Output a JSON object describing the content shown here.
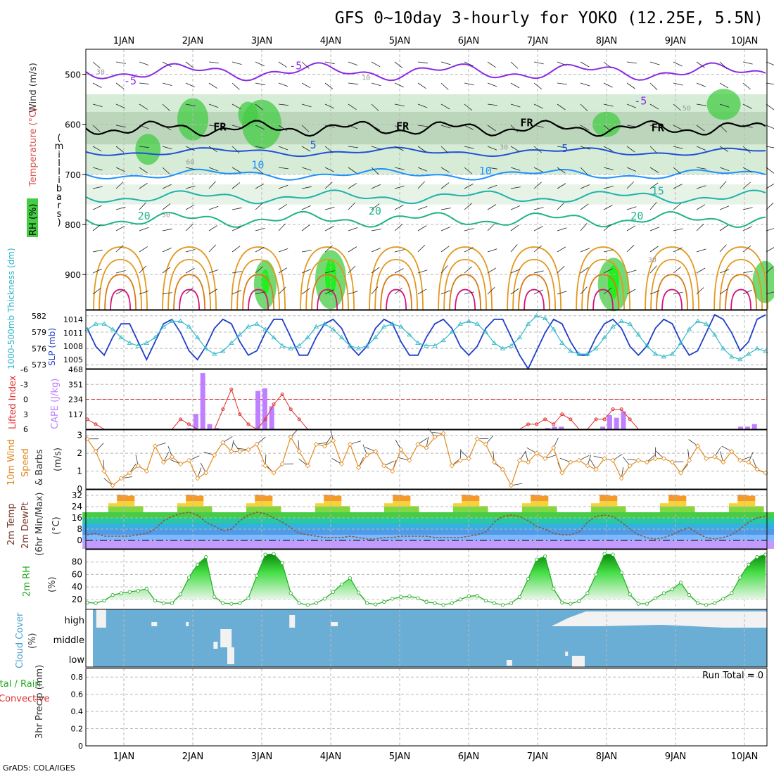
{
  "title": "GFS 0~10day 3-hourly for YOKO (12.25E, 5.5N)",
  "footer": "GrADS: COLA/IGES",
  "colors": {
    "frame": "#000000",
    "grid": "#b8b8b8",
    "rh_green": "#44cc44",
    "rh_light": "#d6ecd6",
    "purple": "#8a2be2",
    "blue": "#1f4fd8",
    "cyan": "#2bb5c8",
    "teal": "#20b2aa",
    "orange": "#e3981e",
    "magenta": "#d6147a",
    "slp": "#1f3fc8",
    "thickness": "#30b8c8",
    "cape": "#bf7fff",
    "lifted": "#e03030",
    "wind": "#e08a1e",
    "temp_line": "#7a3b2e",
    "dew": "#8b5a3a",
    "rh2m": "#22aa22",
    "cloud_bg": "#6aaed6",
    "cloud_fill": "#f2f2f2"
  },
  "chart_data": [
    {
      "panel": "upper-air",
      "type": "contour",
      "x": [
        "1JAN",
        "2JAN",
        "3JAN",
        "4JAN",
        "5JAN",
        "6JAN",
        "7JAN",
        "8JAN",
        "9JAN",
        "10JAN"
      ],
      "ylabel_parts": [
        "Wind (m/s)",
        "Temperature (°C)",
        "RH (%)",
        "(millibars)"
      ],
      "ylabel_chars": [
        "(",
        "m",
        "i",
        "l",
        "l",
        "i",
        "b",
        "a",
        "r",
        "s",
        ")"
      ],
      "yticks": [
        500,
        600,
        700,
        800,
        900
      ],
      "ylim": [
        450,
        970
      ],
      "contour_labels": [
        {
          "text": "-5",
          "day": 0.0,
          "p": 520
        },
        {
          "text": "-5",
          "day": 2.4,
          "p": 490
        },
        {
          "text": "-5",
          "day": 7.4,
          "p": 560
        },
        {
          "text": "FR",
          "day": 1.3,
          "p": 612
        },
        {
          "text": "FR",
          "day": 3.95,
          "p": 611
        },
        {
          "text": "FR",
          "day": 5.75,
          "p": 604
        },
        {
          "text": "FR",
          "day": 7.65,
          "p": 614
        },
        {
          "text": "5",
          "day": 2.7,
          "p": 648
        },
        {
          "text": "5",
          "day": 6.35,
          "p": 655
        },
        {
          "text": "10",
          "day": 1.85,
          "p": 688
        },
        {
          "text": "10",
          "day": 5.15,
          "p": 700
        },
        {
          "text": "15",
          "day": 7.65,
          "p": 740
        },
        {
          "text": "20",
          "day": 0.2,
          "p": 790
        },
        {
          "text": "20",
          "day": 3.55,
          "p": 780
        },
        {
          "text": "20",
          "day": 7.35,
          "p": 790
        },
        {
          "text": "30",
          "day": -0.4,
          "p": 500
        },
        {
          "text": "10",
          "day": 3.45,
          "p": 512
        },
        {
          "text": "50",
          "day": 8.1,
          "p": 572
        },
        {
          "text": "30",
          "day": 5.45,
          "p": 650
        },
        {
          "text": "30",
          "day": 0.55,
          "p": 785
        },
        {
          "text": "30",
          "day": 7.6,
          "p": 875
        },
        {
          "text": "60",
          "day": 0.9,
          "p": 680
        }
      ],
      "contour_levels": {
        "temperature_upper": [
          -5
        ],
        "freezing": [
          "FR"
        ],
        "temperature_mid": [
          5,
          10,
          15,
          20
        ],
        "rh_percent": [
          10,
          30,
          50,
          60
        ]
      }
    },
    {
      "panel": "slp-thickness",
      "type": "line",
      "ylabel_left": "1000-500mb Thickness (dm)",
      "ylabel_right": "SLP (mb)",
      "yticks_left": [
        573,
        576,
        579,
        582
      ],
      "yticks_right": [
        1005,
        1008,
        1011,
        1014
      ],
      "series": [
        {
          "name": "SLP",
          "axis": "right",
          "values": [
            1012,
            1008,
            1006,
            1010,
            1013,
            1013,
            1009,
            1005,
            1009,
            1013,
            1014,
            1011,
            1007,
            1005,
            1008,
            1012,
            1014,
            1013,
            1009,
            1006,
            1007,
            1011,
            1014,
            1014,
            1010,
            1006,
            1006,
            1010,
            1013,
            1014,
            1012,
            1008,
            1006,
            1008,
            1012,
            1014,
            1013,
            1009,
            1006,
            1006,
            1010,
            1013,
            1014,
            1012,
            1008,
            1006,
            1008,
            1012,
            1014,
            1014,
            1010,
            1006,
            1003,
            1007,
            1011,
            1014,
            1013,
            1009,
            1006,
            1006,
            1010,
            1013,
            1014,
            1012,
            1008,
            1006,
            1008,
            1012,
            1014,
            1013,
            1009,
            1006,
            1007,
            1011,
            1015,
            1014,
            1011,
            1007,
            1009,
            1014,
            1015
          ]
        },
        {
          "name": "Thickness",
          "axis": "left",
          "values": [
            579.5,
            580.5,
            580.5,
            579.5,
            578,
            577,
            576.5,
            577,
            578,
            580,
            581,
            581,
            580,
            578,
            576,
            575,
            575.5,
            577,
            578.5,
            580,
            580.5,
            579.5,
            578,
            576.5,
            576,
            576.5,
            578,
            580,
            580.5,
            579.5,
            578,
            576.5,
            576,
            576.5,
            578,
            580,
            580.5,
            580,
            578.5,
            577,
            576.5,
            576.5,
            577.5,
            579,
            580.5,
            581,
            580.5,
            579,
            577,
            576,
            576.5,
            578,
            580.5,
            582,
            581.5,
            579.5,
            577,
            575.5,
            575,
            575,
            576,
            578,
            580,
            581,
            580.5,
            578.5,
            576.5,
            575,
            574.5,
            575,
            577,
            579.5,
            581,
            580.5,
            578.5,
            576,
            574.5,
            574,
            575,
            576,
            575.5
          ]
        }
      ]
    },
    {
      "panel": "lifted-cape",
      "type": "bar",
      "ylabel_left": "Lifted Index",
      "ylabel_right": "CAPE (J/kg)",
      "yticks_left": [
        6,
        3,
        0,
        -3,
        -6
      ],
      "yticks_right": [
        117,
        234,
        351,
        468
      ],
      "cape_bars": [
        {
          "day": 1.95,
          "value": 10
        },
        {
          "day": 2.05,
          "value": 120
        },
        {
          "day": 2.15,
          "value": 440
        },
        {
          "day": 2.25,
          "value": 40
        },
        {
          "day": 2.35,
          "value": 10
        },
        {
          "day": 2.95,
          "value": 300
        },
        {
          "day": 3.05,
          "value": 320
        },
        {
          "day": 3.15,
          "value": 180
        },
        {
          "day": 7.15,
          "value": 10
        },
        {
          "day": 7.25,
          "value": 20
        },
        {
          "day": 7.35,
          "value": 20
        },
        {
          "day": 7.95,
          "value": 20
        },
        {
          "day": 8.05,
          "value": 110
        },
        {
          "day": 8.15,
          "value": 90
        },
        {
          "day": 8.25,
          "value": 140
        },
        {
          "day": 9.95,
          "value": 20
        },
        {
          "day": 10.05,
          "value": 20
        },
        {
          "day": 10.15,
          "value": 40
        }
      ],
      "lifted_index": [
        4,
        5,
        6,
        6,
        6,
        6,
        6,
        6,
        6,
        6,
        6,
        4,
        5,
        6,
        6,
        6,
        2,
        -2,
        3,
        5,
        6,
        4,
        1,
        -1,
        2,
        4,
        6,
        6,
        6,
        6,
        6,
        6,
        6,
        6,
        6,
        6,
        6,
        6,
        6,
        6,
        6,
        6,
        6,
        6,
        6,
        6,
        6,
        6,
        6,
        6,
        6,
        6,
        5,
        5,
        4,
        5,
        3,
        4,
        6,
        6,
        4,
        4,
        2,
        2,
        4,
        6,
        6,
        6,
        6,
        6,
        6,
        6,
        6,
        6,
        6,
        6,
        6,
        6,
        6,
        6,
        6
      ]
    },
    {
      "panel": "wind10m",
      "type": "line",
      "ylabel": "10m Wind Speed & Barbs (m/s)",
      "ylabel_parts": [
        "10m Wind",
        "Speed",
        "& Barbs",
        "(m/s)"
      ],
      "yticks": [
        0,
        1,
        2,
        3
      ],
      "values": [
        2.8,
        2.1,
        1.0,
        0.2,
        0.6,
        0.9,
        1.3,
        1.0,
        2.4,
        1.5,
        1.8,
        1.4,
        1.6,
        0.6,
        0.9,
        1.9,
        2.6,
        2.1,
        2.1,
        2.2,
        2.5,
        1.3,
        0.9,
        1.4,
        2.9,
        2.1,
        1.3,
        2.5,
        2.4,
        2.7,
        1.4,
        2.5,
        1.2,
        1.9,
        2.1,
        1.3,
        1.0,
        2.2,
        1.6,
        2.5,
        2.3,
        2.9,
        3.1,
        1.3,
        1.6,
        1.7,
        2.8,
        2.5,
        1.5,
        1.1,
        0.2,
        1.6,
        1.5,
        2.0,
        1.7,
        2.3,
        0.9,
        1.5,
        1.6,
        1.3,
        1.1,
        1.7,
        1.6,
        0.6,
        1.3,
        1.6,
        1.5,
        1.7,
        1.7,
        1.5,
        0.9,
        1.6,
        2.4,
        1.7,
        1.8,
        1.5,
        2.1,
        1.6,
        1.5,
        1.1,
        0.9
      ]
    },
    {
      "panel": "temperature",
      "type": "area",
      "ylabel_parts": [
        "2m Temp",
        "2m DewPt",
        "(6hr Min/Max)",
        "(°C)"
      ],
      "yticks": [
        0,
        8,
        16,
        24,
        32
      ],
      "temp_daily": [
        {
          "min": 20,
          "max": 33
        }
      ],
      "dewpoint": [
        4,
        5,
        3,
        3,
        3,
        3,
        4,
        5,
        8,
        14,
        17,
        19,
        20,
        18,
        13,
        10,
        7,
        8,
        14,
        18,
        20,
        19,
        16,
        13,
        9,
        5,
        4,
        3,
        2,
        2,
        2,
        3,
        2,
        1,
        1,
        2,
        2,
        3,
        3,
        3,
        3,
        2,
        2,
        2,
        2,
        3,
        4,
        6,
        13,
        17,
        18,
        17,
        14,
        10,
        8,
        5,
        4,
        4,
        6,
        13,
        17,
        18,
        17,
        13,
        8,
        4,
        2,
        1,
        2,
        4,
        7,
        9,
        5,
        2,
        1,
        2,
        4,
        8,
        13,
        16,
        17
      ]
    },
    {
      "panel": "rh2m",
      "type": "area",
      "ylabel": "2m RH",
      "unit": "(%)",
      "yticks": [
        20,
        40,
        60,
        80
      ],
      "values": [
        15,
        14,
        18,
        27,
        30,
        32,
        34,
        37,
        18,
        14,
        14,
        28,
        55,
        76,
        88,
        24,
        14,
        13,
        14,
        22,
        58,
        92,
        93,
        78,
        30,
        14,
        11,
        14,
        21,
        32,
        44,
        54,
        31,
        14,
        12,
        16,
        21,
        24,
        25,
        22,
        16,
        14,
        11,
        14,
        20,
        25,
        26,
        18,
        14,
        11,
        14,
        24,
        53,
        84,
        89,
        37,
        15,
        13,
        17,
        30,
        60,
        93,
        92,
        63,
        28,
        13,
        13,
        22,
        30,
        36,
        47,
        27,
        14,
        11,
        14,
        21,
        30,
        55,
        76,
        88,
        92
      ]
    },
    {
      "panel": "cloud",
      "type": "heatmap",
      "ylabel": "Cloud Cover",
      "unit": "(%)",
      "levels": [
        "high",
        "middle",
        "low"
      ]
    },
    {
      "panel": "precip",
      "type": "bar",
      "ylabel_left_a": "Total / Rain",
      "ylabel_left_b": "Convective",
      "ylabel": "3hr Precip (mm)",
      "yticks": [
        0,
        0.2,
        0.4,
        0.6,
        0.8
      ],
      "run_total": "Run Total = 0",
      "values": []
    }
  ]
}
